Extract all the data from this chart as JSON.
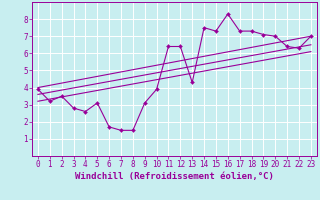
{
  "xlabel": "Windchill (Refroidissement éolien,°C)",
  "bg_color": "#c8eef0",
  "grid_color": "#ffffff",
  "line_color": "#990099",
  "xlim": [
    -0.5,
    23.5
  ],
  "ylim": [
    0,
    9
  ],
  "xticks": [
    0,
    1,
    2,
    3,
    4,
    5,
    6,
    7,
    8,
    9,
    10,
    11,
    12,
    13,
    14,
    15,
    16,
    17,
    18,
    19,
    20,
    21,
    22,
    23
  ],
  "yticks": [
    1,
    2,
    3,
    4,
    5,
    6,
    7,
    8
  ],
  "zigzag_x": [
    0,
    1,
    2,
    3,
    4,
    5,
    6,
    7,
    8,
    9,
    10,
    11,
    12,
    13,
    14,
    15,
    16,
    17,
    18,
    19,
    20,
    21,
    22,
    23
  ],
  "zigzag_y": [
    3.9,
    3.2,
    3.5,
    2.8,
    2.6,
    3.1,
    1.7,
    1.5,
    1.5,
    3.1,
    3.9,
    6.4,
    6.4,
    4.3,
    7.5,
    7.3,
    8.3,
    7.3,
    7.3,
    7.1,
    7.0,
    6.4,
    6.3,
    7.0
  ],
  "line1_x": [
    0,
    23
  ],
  "line1_y": [
    3.6,
    6.5
  ],
  "line2_x": [
    0,
    23
  ],
  "line2_y": [
    3.2,
    6.1
  ],
  "line3_x": [
    0,
    23
  ],
  "line3_y": [
    4.0,
    7.0
  ],
  "font_color": "#990099",
  "tick_fontsize": 5.5,
  "label_fontsize": 6.5
}
